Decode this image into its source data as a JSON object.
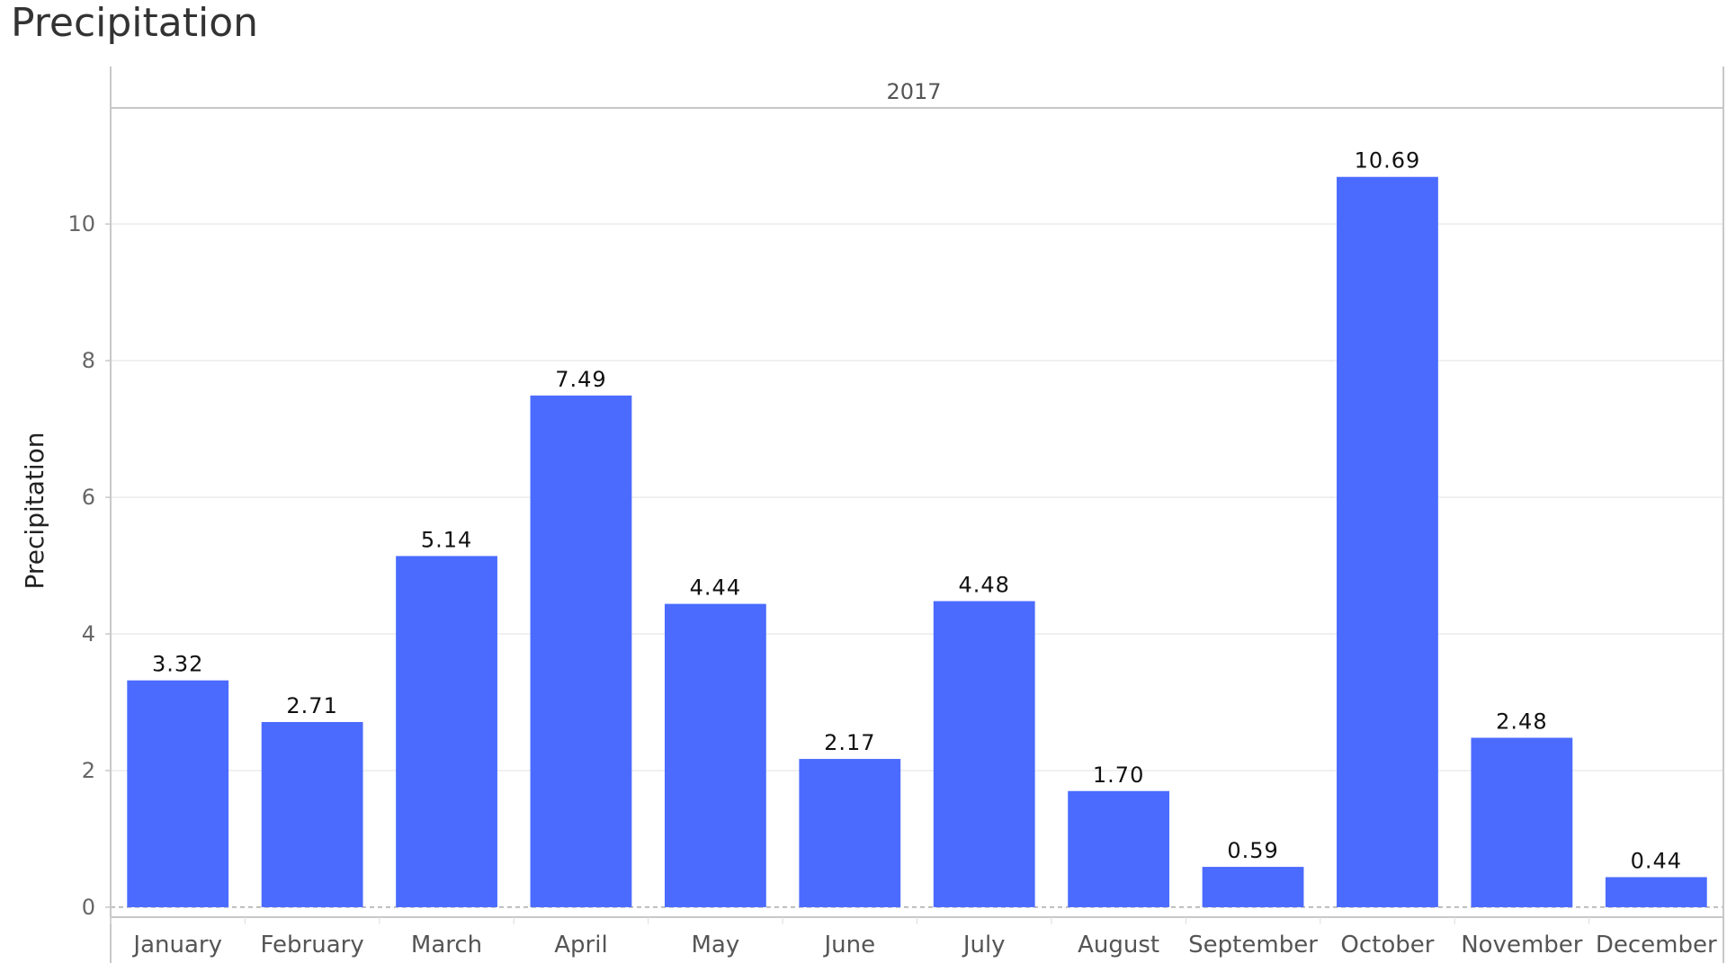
{
  "chart_data": {
    "type": "bar",
    "title": "Precipitation",
    "panel_label": "2017",
    "ylabel": "Precipitation",
    "xlabel": "",
    "categories": [
      "January",
      "February",
      "March",
      "April",
      "May",
      "June",
      "July",
      "August",
      "September",
      "October",
      "November",
      "December"
    ],
    "values": [
      3.32,
      2.71,
      5.14,
      7.49,
      4.44,
      2.17,
      4.48,
      1.7,
      0.59,
      10.69,
      2.48,
      0.44
    ],
    "value_labels": [
      "3.32",
      "2.71",
      "5.14",
      "7.49",
      "4.44",
      "2.17",
      "4.48",
      "1.70",
      "0.59",
      "10.69",
      "2.48",
      "0.44"
    ],
    "yticks": [
      0,
      2,
      4,
      6,
      8,
      10
    ],
    "ylim": [
      -0.08,
      11.7
    ],
    "grid": true,
    "bar_color": "#4B6BFF",
    "legend": "none"
  }
}
